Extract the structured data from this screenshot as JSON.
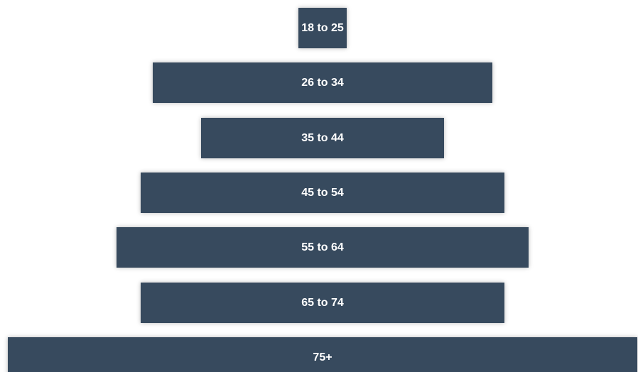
{
  "chart_data": {
    "type": "bar",
    "orientation": "horizontal-centered",
    "categories": [
      "18 to 25",
      "26 to 34",
      "35 to 44",
      "45 to 54",
      "55 to 64",
      "65 to 74",
      "75+"
    ],
    "values": [
      68,
      478,
      342,
      512,
      580,
      512,
      886
    ],
    "title": "",
    "xlabel": "",
    "ylabel": "",
    "bar_color": "#374a5e",
    "label_color": "#ffffff",
    "grid": false,
    "legend": "none"
  }
}
